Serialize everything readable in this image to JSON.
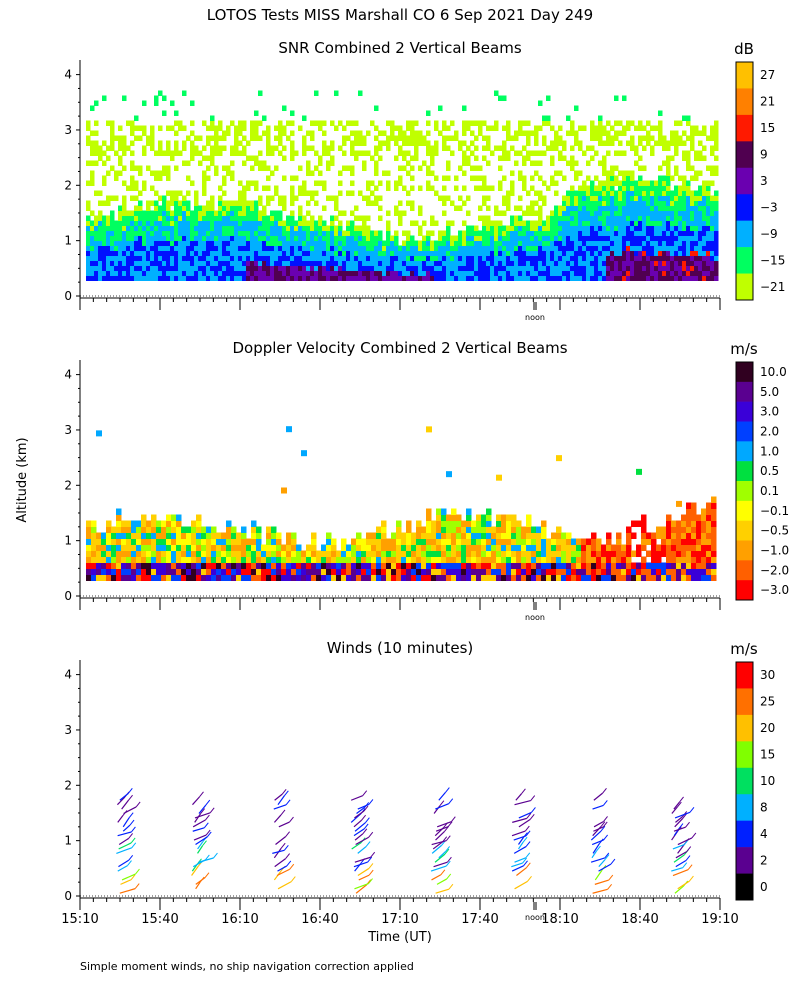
{
  "header": {
    "title": "LOTOS Tests MISS Marshall CO   6 Sep 2021 Day 249"
  },
  "footer": {
    "note": "Simple moment winds, no ship navigation correction applied"
  },
  "axes": {
    "ylabel": "Altitude (km)",
    "xlabel": "Time (UT)",
    "noon_label": "noon",
    "x_ticks": [
      "15:10",
      "15:40",
      "16:10",
      "16:40",
      "17:10",
      "17:40",
      "18:10",
      "18:40",
      "19:10"
    ],
    "y_ticks": [
      "0",
      "1",
      "2",
      "3",
      "4"
    ]
  },
  "chart_data": [
    {
      "type": "heatmap",
      "title": "SNR Combined 2 Vertical Beams",
      "x_range": [
        "15:10",
        "19:10"
      ],
      "ylim": [
        0,
        4
      ],
      "colorbar": {
        "unit": "dB",
        "labels": [
          "27",
          "21",
          "15",
          "9",
          "3",
          "−3",
          "−9",
          "−15",
          "−21"
        ],
        "colors": [
          "#ffc000",
          "#ff8000",
          "#ff1a00",
          "#500050",
          "#6a00b0",
          "#0010ff",
          "#00b0ff",
          "#00ff60",
          "#c0ff00"
        ]
      },
      "description_values": {
        "surface_layer_top_km": 1.4,
        "sparse_layer_top_km": 3.6
      }
    },
    {
      "type": "heatmap",
      "title": "Doppler Velocity Combined 2 Vertical Beams",
      "x_range": [
        "15:10",
        "19:10"
      ],
      "ylim": [
        0,
        4
      ],
      "colorbar": {
        "unit": "m/s",
        "labels": [
          "10.0",
          "5.0",
          "3.0",
          "2.0",
          "1.0",
          "0.5",
          "0.1",
          "−0.1",
          "−0.5",
          "−1.0",
          "−2.0",
          "−3.0"
        ],
        "colors": [
          "#300020",
          "#5a0090",
          "#3a00d8",
          "#0040ff",
          "#00a8ff",
          "#00e040",
          "#a0ff00",
          "#ffff00",
          "#ffd000",
          "#ffa000",
          "#ff6000",
          "#ff0000"
        ]
      }
    },
    {
      "type": "scatter",
      "title": "Winds (10 minutes)",
      "x_range": [
        "15:10",
        "19:10"
      ],
      "ylim": [
        0,
        4
      ],
      "colorbar": {
        "unit": "m/s",
        "labels": [
          "30",
          "25",
          "20",
          "15",
          "10",
          "8",
          "4",
          "2",
          "0"
        ],
        "colors": [
          "#ff0000",
          "#ff7000",
          "#ffc000",
          "#80ff00",
          "#00e060",
          "#00b0ff",
          "#0020ff",
          "#5a0090",
          "#000000"
        ]
      },
      "profile_times": [
        "15:25",
        "15:50",
        "16:20",
        "16:50",
        "17:20",
        "17:50",
        "18:20",
        "18:50"
      ]
    }
  ]
}
